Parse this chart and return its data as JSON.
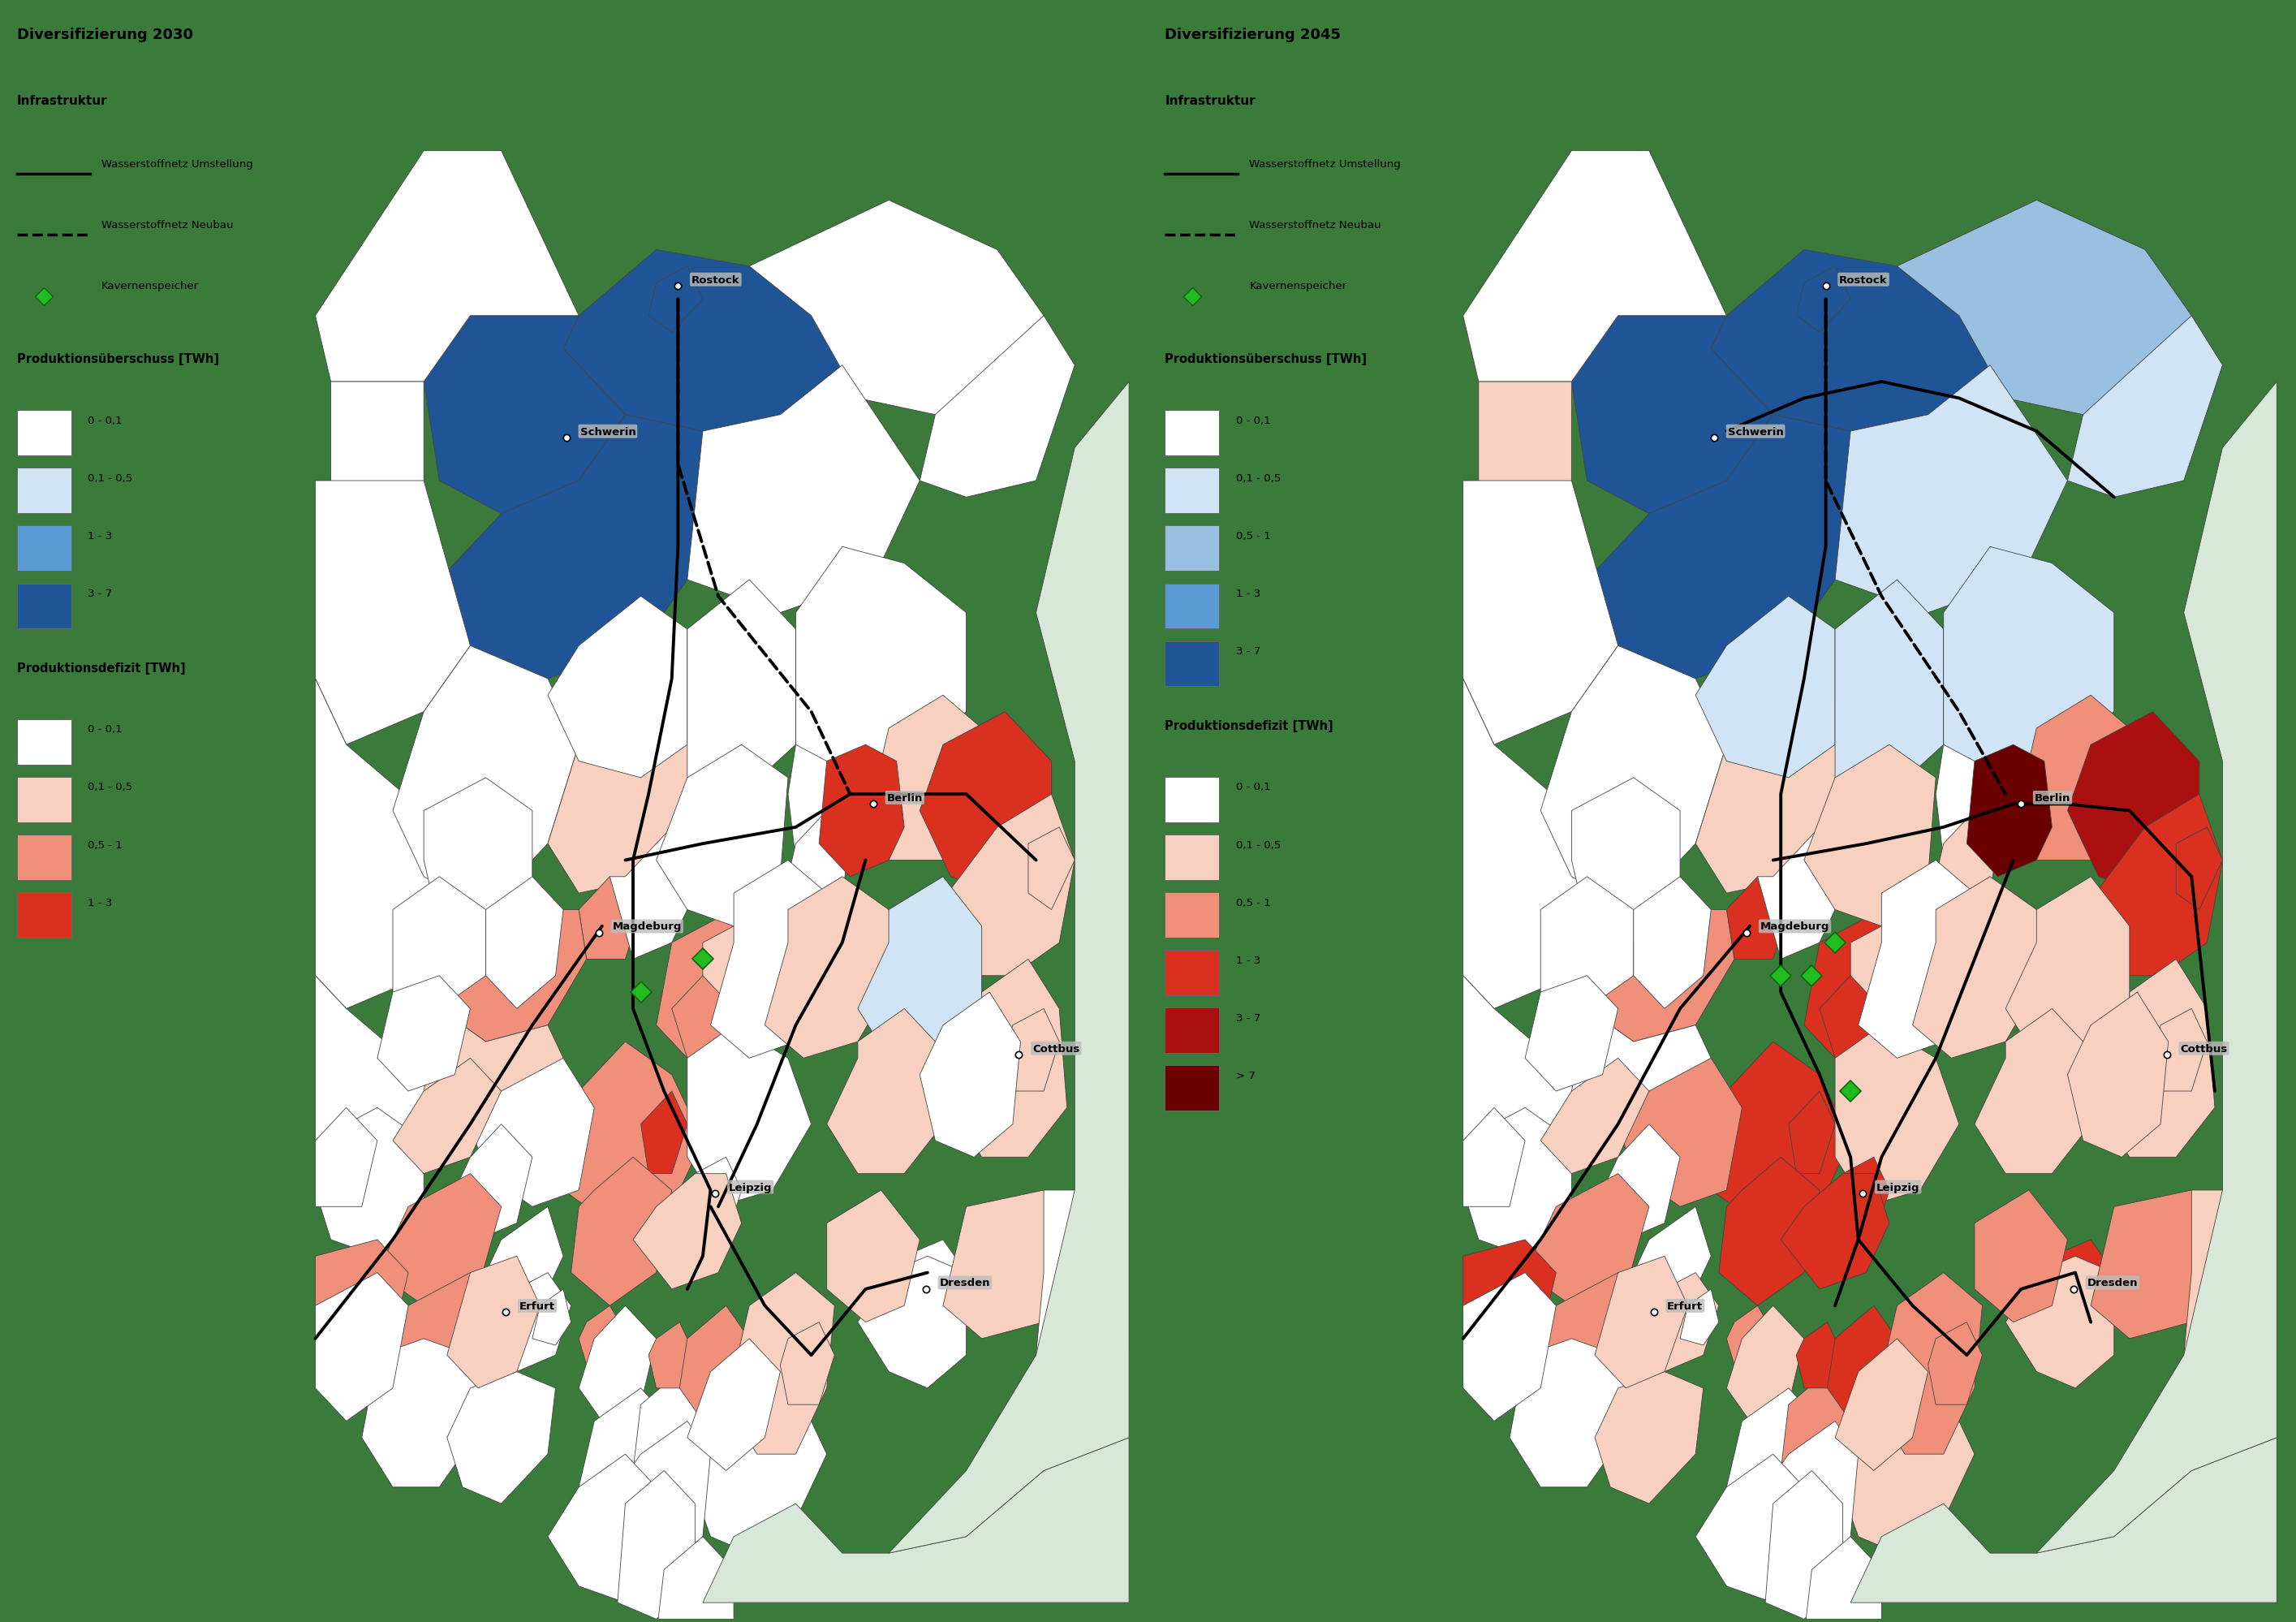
{
  "title_left": "Diversifizierung 2030",
  "title_right": "Diversifizierung 2045",
  "bg_color": "#3a7a3a",
  "legend_infra_title": "Infrastruktur",
  "legend_line_solid": "Wasserstoffnetz Umstellung",
  "legend_line_dashed": "Wasserstoffnetz Neubau",
  "legend_diamond": "Kavernenspeicher",
  "legend_surplus_title": "Produktionsüberschuss [TWh]",
  "legend_deficit_title": "Produktionsdefizit [TWh]",
  "surplus_labels_2030": [
    "0 - 0,1",
    "0,1 - 0,5",
    "1 - 3",
    "3 - 7"
  ],
  "surplus_colors_2030": [
    "#ffffff",
    "#d0e4f5",
    "#5b9bd5",
    "#1f5496"
  ],
  "deficit_labels_2030": [
    "0 - 0,1",
    "0,1 - 0,5",
    "0,5 - 1",
    "1 - 3"
  ],
  "deficit_colors_2030": [
    "#ffffff",
    "#f8d0c0",
    "#f0907a",
    "#d93020"
  ],
  "surplus_labels_2045": [
    "0 - 0,1",
    "0,1 - 0,5",
    "0,5 - 1",
    "1 - 3",
    "3 - 7"
  ],
  "surplus_colors_2045": [
    "#ffffff",
    "#d0e4f5",
    "#98c0e0",
    "#5b9bd5",
    "#1f5496"
  ],
  "deficit_labels_2045": [
    "0 - 0,1",
    "0,1 - 0,5",
    "0,5 - 1",
    "1 - 3",
    "3 - 7",
    "> 7"
  ],
  "deficit_colors_2045": [
    "#ffffff",
    "#f8d0c0",
    "#f0907a",
    "#d93020",
    "#aa1010",
    "#6b0000"
  ],
  "surplus_colors_map_2030": {
    "0-0.1": "#ffffff",
    "0.1-0.5": "#d0e4f5",
    "1-3": "#5b9bd5",
    "3-7": "#1f5496"
  },
  "deficit_colors_map_2030": {
    "0-0.1": "#ffffff",
    "0.1-0.5": "#f8d0c0",
    "0.5-1": "#f0907a",
    "1-3": "#d93020"
  },
  "surplus_colors_map_2045": {
    "0-0.1": "#ffffff",
    "0.1-0.5": "#d0e4f5",
    "0.5-1": "#98c0e0",
    "1-3": "#5b9bd5",
    "3-7": "#1f5496"
  },
  "deficit_colors_map_2045": {
    "0-0.1": "#ffffff",
    "0.1-0.5": "#f8d0c0",
    "0.5-1": "#f0907a",
    "1-3": "#d93020",
    "3-7": "#aa1010",
    ">7": "#6b0000"
  }
}
